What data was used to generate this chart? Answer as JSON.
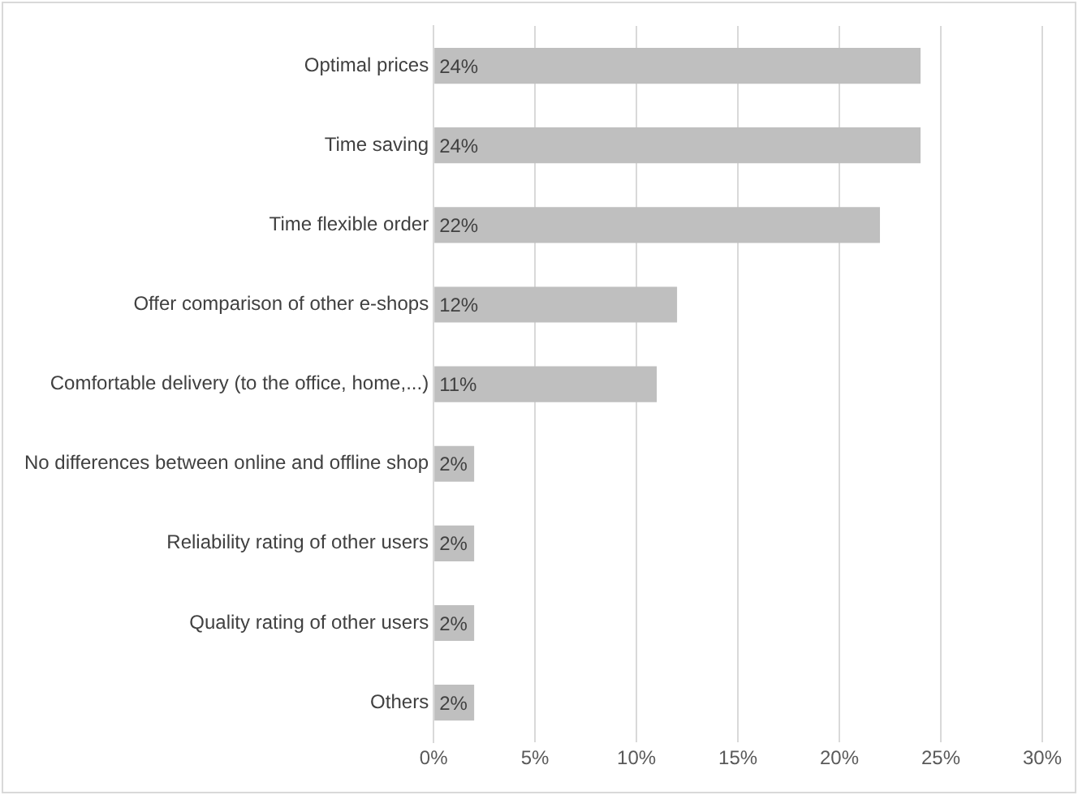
{
  "chart_data": {
    "type": "bar",
    "orientation": "horizontal",
    "categories": [
      "Optimal prices",
      "Time saving",
      "Time flexible order",
      "Offer comparison of other e-shops",
      "Comfortable delivery (to the office, home,...)",
      "No differences between online and offline shop",
      "Reliability rating of other users",
      "Quality rating of other users",
      "Others"
    ],
    "values": [
      24,
      24,
      22,
      12,
      11,
      2,
      2,
      2,
      2
    ],
    "value_labels": [
      "24%",
      "24%",
      "22%",
      "12%",
      "11%",
      "2%",
      "2%",
      "2%",
      "2%"
    ],
    "color": "#bfbfbf",
    "xlim": [
      0,
      30
    ],
    "xticks": [
      {
        "value": 0,
        "label": "0%"
      },
      {
        "value": 5,
        "label": "5%"
      },
      {
        "value": 10,
        "label": "10%"
      },
      {
        "value": 15,
        "label": "15%"
      },
      {
        "value": 20,
        "label": "20%"
      },
      {
        "value": 25,
        "label": "25%"
      },
      {
        "value": 30,
        "label": "30%"
      }
    ],
    "grid": "x",
    "legend": false
  }
}
